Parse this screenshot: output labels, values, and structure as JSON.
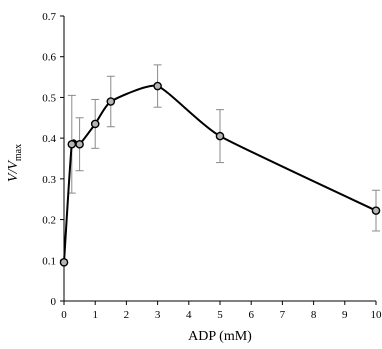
{
  "chart_data": {
    "type": "line",
    "xlabel": "ADP (mM)",
    "ylabel_main": "V/V",
    "ylabel_sub": "max",
    "xlim": [
      0,
      10
    ],
    "ylim": [
      0,
      0.7
    ],
    "x_ticks": [
      0,
      1,
      2,
      3,
      4,
      5,
      6,
      7,
      8,
      9,
      10
    ],
    "y_ticks": [
      0,
      0.1,
      0.2,
      0.3,
      0.4,
      0.5,
      0.6,
      0.7
    ],
    "y_tick_labels": [
      "0",
      "0.1",
      "0.2",
      "0.3",
      "0.4",
      "0.5",
      "0.6",
      "0.7"
    ],
    "grid": false,
    "smooth": true,
    "series": [
      {
        "x": [
          0,
          0.25,
          0.5,
          1,
          1.5,
          3,
          5,
          10
        ],
        "y": [
          0.095,
          0.385,
          0.385,
          0.435,
          0.49,
          0.528,
          0.405,
          0.222
        ],
        "err": [
          0,
          0.12,
          0.065,
          0.06,
          0.062,
          0.052,
          0.065,
          0.05
        ]
      }
    ]
  }
}
